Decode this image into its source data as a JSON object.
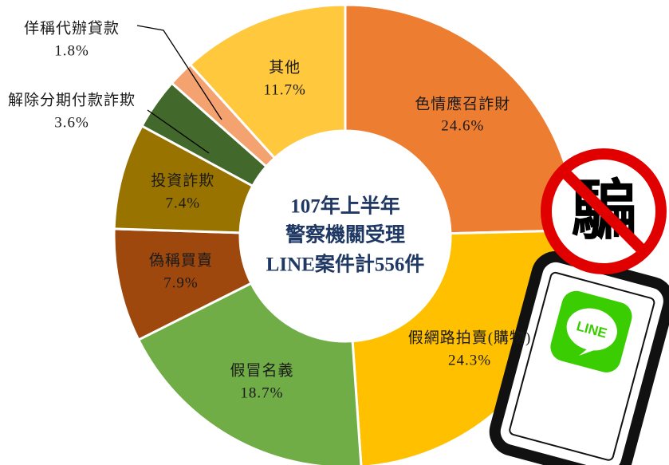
{
  "chart_data": {
    "type": "donut",
    "center_label": [
      "107年上半年",
      "警察機關受理",
      "LINE案件計556件"
    ],
    "categories": [
      "色情應召詐財",
      "假網路拍賣(購物)",
      "假冒名義",
      "偽稱買賣",
      "投資詐欺",
      "解除分期付款詐欺",
      "佯稱代辦貸款",
      "其他"
    ],
    "values": [
      24.6,
      24.3,
      18.7,
      7.9,
      7.4,
      3.6,
      1.8,
      11.7
    ],
    "value_labels": [
      "24.6%",
      "24.3%",
      "18.7%",
      "7.9%",
      "7.4%",
      "3.6%",
      "1.8%",
      "11.7%"
    ],
    "colors": [
      "#ED7D31",
      "#FFC000",
      "#70AD47",
      "#9E480E",
      "#997300",
      "#43682B",
      "#F4A26F",
      "#FFC83D"
    ]
  }
}
